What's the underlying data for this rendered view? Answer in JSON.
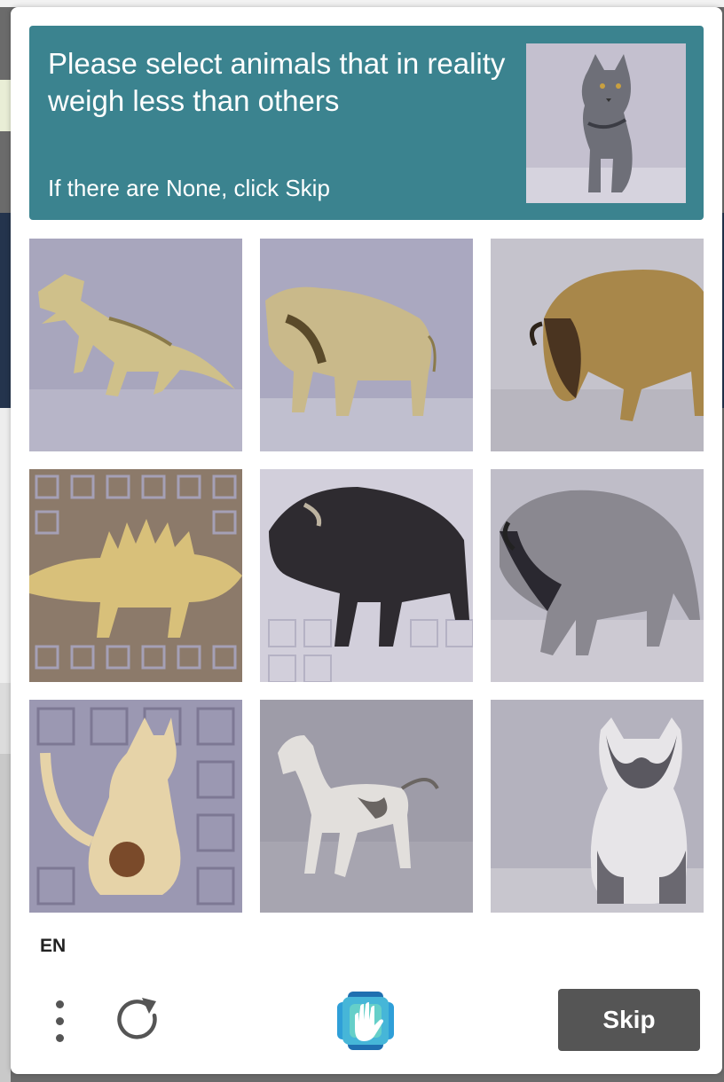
{
  "prompt": {
    "title": "Please select animals that in reality weigh less than others",
    "subtitle": "If there are None, click Skip",
    "example_image": "cat-figurine",
    "background_color": "#3b838f"
  },
  "tiles": [
    {
      "subject": "tyrannosaurus-figurine"
    },
    {
      "subject": "bison-figurine"
    },
    {
      "subject": "bison-figurine"
    },
    {
      "subject": "stegosaurus-figurine"
    },
    {
      "subject": "bison-figurine"
    },
    {
      "subject": "bison-figurine"
    },
    {
      "subject": "cat-figurine"
    },
    {
      "subject": "horse-figurine"
    },
    {
      "subject": "cat-figurine"
    }
  ],
  "footer": {
    "language": "EN",
    "skip_label": "Skip",
    "menu_icon": "vertical-dots-icon",
    "refresh_icon": "refresh-icon",
    "logo_icon": "hand-logo-icon",
    "skip_color": "#555555"
  }
}
